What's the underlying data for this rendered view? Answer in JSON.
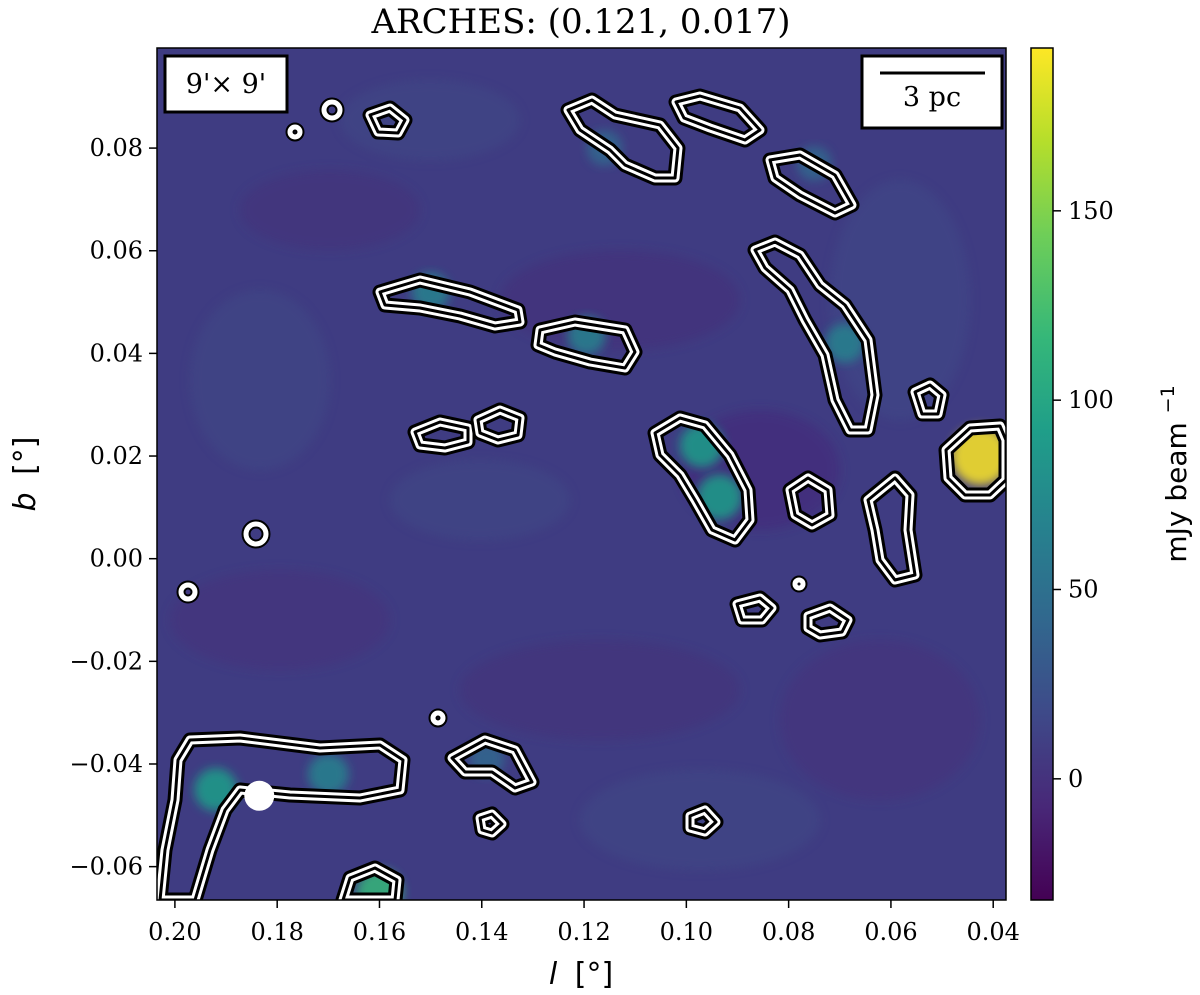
{
  "chart_data": {
    "type": "heatmap",
    "title": "ARCHES: (0.121, 0.017)",
    "xlabel_var": "l",
    "xlabel_unit": "[°]",
    "ylabel_var": "b",
    "ylabel_unit": "[°]",
    "xlim": [
      0.2035,
      0.0375
    ],
    "ylim": [
      -0.0665,
      0.0995
    ],
    "xticks": [
      0.2,
      0.18,
      0.16,
      0.14,
      0.12,
      0.1,
      0.08,
      0.06,
      0.04
    ],
    "xtick_labels": [
      "0.20",
      "0.18",
      "0.16",
      "0.14",
      "0.12",
      "0.10",
      "0.08",
      "0.06",
      "0.04"
    ],
    "yticks": [
      -0.06,
      -0.04,
      -0.02,
      0.0,
      0.02,
      0.04,
      0.06,
      0.08
    ],
    "ytick_labels": [
      "−0.06",
      "−0.04",
      "−0.02",
      "0.00",
      "0.02",
      "0.04",
      "0.06",
      "0.08"
    ],
    "colorbar": {
      "label": "mJy beam",
      "label_superscript": "−1",
      "range": [
        -32,
        193
      ],
      "ticks": [
        0,
        50,
        100,
        150
      ],
      "tick_labels": [
        "0",
        "50",
        "100",
        "150"
      ],
      "colormap": [
        "#440154",
        "#482878",
        "#3e4a89",
        "#31688e",
        "#26828e",
        "#1f9e89",
        "#35b779",
        "#6ece58",
        "#b5de2b",
        "#fde725"
      ]
    },
    "field_size_label": "9'× 9'",
    "scale_bar_label": "3 pc",
    "marker": {
      "l": 0.1835,
      "b": -0.0462,
      "label": ""
    },
    "sources": [
      {
        "l": 0.192,
        "b": -0.045,
        "peak": 90
      },
      {
        "l": 0.17,
        "b": -0.042,
        "peak": 78
      },
      {
        "l": 0.16,
        "b": -0.065,
        "peak": 110
      },
      {
        "l": 0.1195,
        "b": 0.0435,
        "peak": 62
      },
      {
        "l": 0.15,
        "b": 0.052,
        "peak": 60
      },
      {
        "l": 0.097,
        "b": 0.022,
        "peak": 95
      },
      {
        "l": 0.0935,
        "b": 0.012,
        "peak": 105
      },
      {
        "l": 0.069,
        "b": 0.042,
        "peak": 68
      },
      {
        "l": 0.0425,
        "b": 0.02,
        "peak": 185
      },
      {
        "l": 0.116,
        "b": 0.08,
        "peak": 46
      },
      {
        "l": 0.075,
        "b": 0.077,
        "peak": 40
      },
      {
        "l": 0.139,
        "b": -0.039,
        "peak": 45
      }
    ]
  }
}
